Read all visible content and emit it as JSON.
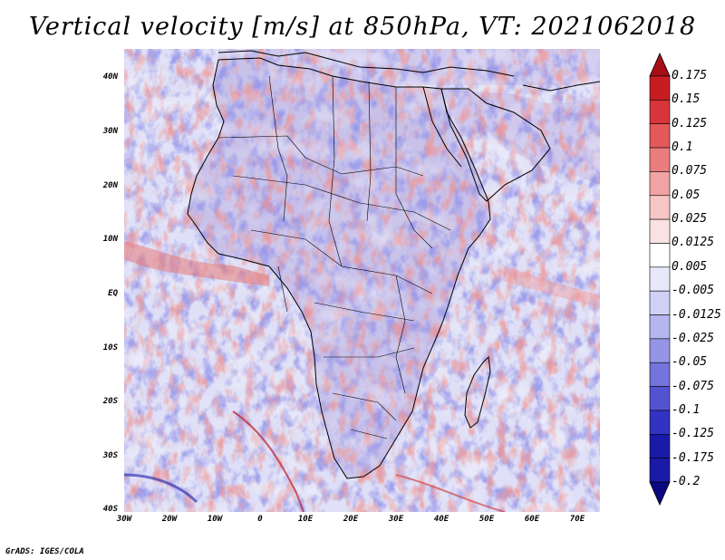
{
  "title": "Vertical velocity [m/s] at 850hPa, VT: 2021062018",
  "axes": {
    "lat_labels": [
      "40N",
      "30N",
      "20N",
      "10N",
      "EQ",
      "10S",
      "20S",
      "30S",
      "40S"
    ],
    "lon_labels": [
      "30W",
      "20W",
      "10W",
      "0",
      "10E",
      "20E",
      "30E",
      "40E",
      "50E",
      "60E",
      "70E"
    ]
  },
  "colorbar": {
    "labels": [
      "0.175",
      "0.15",
      "0.125",
      "0.1",
      "0.075",
      "0.05",
      "0.025",
      "0.0125",
      "0.005",
      "-0.005",
      "-0.0125",
      "-0.025",
      "-0.05",
      "-0.075",
      "-0.1",
      "-0.125",
      "-0.175",
      "-0.2"
    ],
    "colors": [
      "#a50f15",
      "#c81c23",
      "#d8353a",
      "#e35959",
      "#ea7d7d",
      "#f1a2a2",
      "#f6c5c5",
      "#fae2e2",
      "#ffffff",
      "#e8e8fb",
      "#d1d1f6",
      "#b5b5ef",
      "#9595e6",
      "#7474dc",
      "#5353d1",
      "#3232c3",
      "#1a1aa8",
      "#0a0a80"
    ]
  },
  "credit": "GrADS: IGES/COLA",
  "field_colors": {
    "ocean_base": "#dfe0f7",
    "land_base": "#c9c4ec",
    "up": "#d95050",
    "down": "#4a4ad0",
    "coast": "#000000"
  }
}
